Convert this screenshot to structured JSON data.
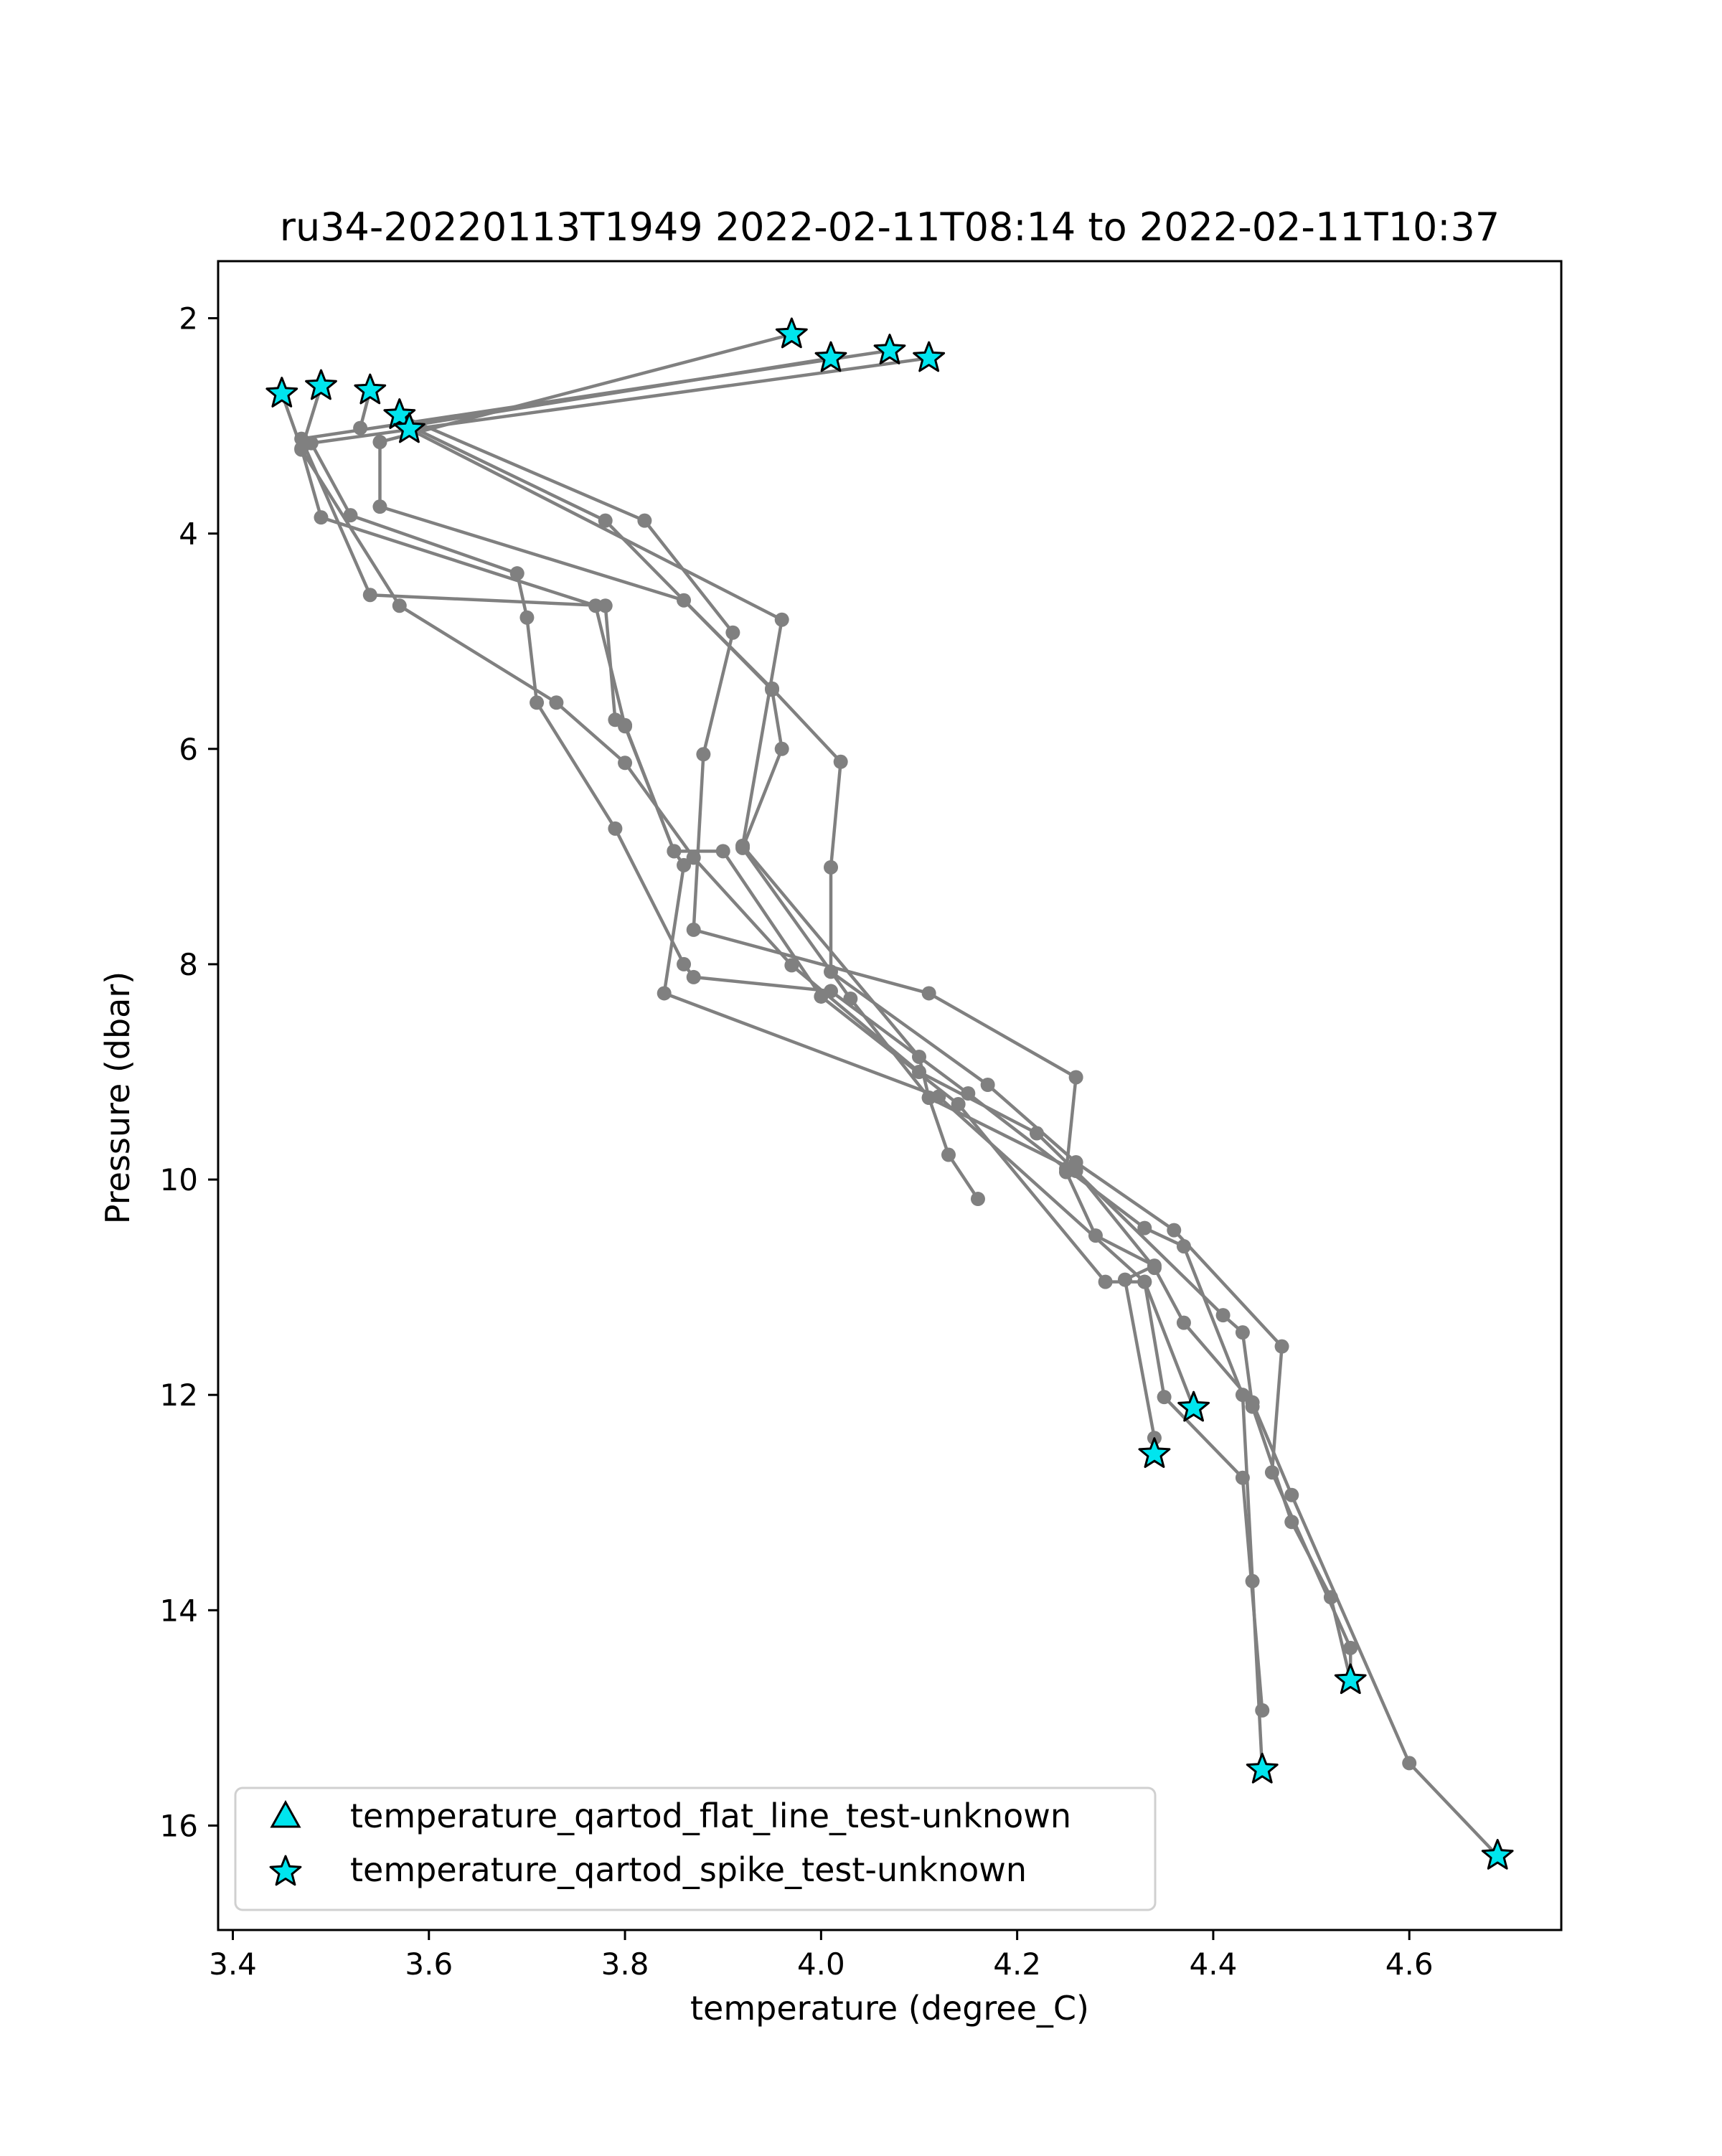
{
  "chart_data": {
    "type": "line",
    "title": "ru34-20220113T1949 2022-02-11T08:14 to 2022-02-11T10:37",
    "xlabel": "temperature (degree_C)",
    "ylabel": "Pressure (dbar)",
    "xlim": [
      3.385,
      4.755
    ],
    "ylim": [
      16.97,
      1.47
    ],
    "y_inverted": true,
    "grid": false,
    "xticks": [
      "3.4",
      "3.6",
      "3.8",
      "4.0",
      "4.2",
      "4.4",
      "4.6"
    ],
    "yticks": [
      "2",
      "4",
      "6",
      "8",
      "10",
      "12",
      "14",
      "16"
    ],
    "profile_color": "#808080",
    "flag_color": "#00e5ee",
    "legend": {
      "placement": "lower-left",
      "entries": [
        {
          "label": "temperature_qartod_flat_line_test-unknown",
          "marker": "triangle"
        },
        {
          "label": "temperature_qartod_spike_test-unknown",
          "marker": "star"
        }
      ]
    },
    "series": [
      {
        "points": [
          [
            4.11,
            2.37
          ],
          [
            3.48,
            3.16
          ],
          [
            3.52,
            3.83
          ],
          [
            3.69,
            4.37
          ],
          [
            3.7,
            4.78
          ],
          [
            3.71,
            5.57
          ],
          [
            3.79,
            6.74
          ],
          [
            3.86,
            8.0
          ],
          [
            3.87,
            8.12
          ],
          [
            4.01,
            8.25
          ],
          [
            4.15,
            9.2
          ],
          [
            4.25,
            9.9
          ],
          [
            4.33,
            10.45
          ],
          [
            4.37,
            10.62
          ],
          [
            4.43,
            12.0
          ],
          [
            4.44,
            13.73
          ],
          [
            4.45,
            15.48
          ]
        ]
      },
      {
        "points": [
          [
            4.07,
            2.3
          ],
          [
            3.47,
            3.12
          ],
          [
            3.54,
            4.57
          ],
          [
            3.78,
            4.67
          ],
          [
            3.79,
            5.73
          ],
          [
            3.8,
            5.78
          ],
          [
            3.85,
            6.95
          ],
          [
            3.86,
            7.08
          ],
          [
            3.84,
            8.27
          ],
          [
            4.12,
            9.23
          ],
          [
            4.33,
            10.95
          ],
          [
            4.38,
            12.12
          ]
        ]
      },
      {
        "points": [
          [
            3.97,
            2.15
          ],
          [
            3.55,
            3.15
          ],
          [
            3.55,
            3.75
          ],
          [
            3.86,
            4.62
          ],
          [
            3.95,
            5.44
          ],
          [
            4.02,
            6.12
          ],
          [
            4.01,
            7.1
          ],
          [
            4.01,
            8.07
          ],
          [
            4.17,
            9.12
          ],
          [
            4.26,
            9.84
          ],
          [
            4.36,
            10.47
          ],
          [
            4.47,
            11.55
          ],
          [
            4.46,
            12.72
          ],
          [
            4.54,
            14.35
          ],
          [
            4.54,
            14.65
          ]
        ]
      },
      {
        "points": [
          [
            4.01,
            2.37
          ],
          [
            3.58,
            3.0
          ],
          [
            3.78,
            3.88
          ],
          [
            3.95,
            5.45
          ],
          [
            3.96,
            6.0
          ],
          [
            3.92,
            6.92
          ],
          [
            4.03,
            8.32
          ],
          [
            4.11,
            9.24
          ],
          [
            4.26,
            9.92
          ],
          [
            4.34,
            10.82
          ],
          [
            4.37,
            11.33
          ],
          [
            4.44,
            12.07
          ],
          [
            4.48,
            12.93
          ],
          [
            4.6,
            15.42
          ],
          [
            4.69,
            16.28
          ]
        ]
      },
      {
        "points": [
          [
            3.58,
            3.03
          ],
          [
            3.96,
            4.8
          ],
          [
            3.92,
            6.9
          ],
          [
            4.1,
            8.86
          ],
          [
            4.11,
            9.24
          ],
          [
            4.13,
            9.77
          ],
          [
            4.16,
            10.18
          ]
        ]
      },
      {
        "points": [
          [
            3.57,
            2.9
          ],
          [
            3.82,
            3.88
          ],
          [
            3.91,
            4.92
          ],
          [
            3.88,
            6.05
          ],
          [
            3.87,
            7.68
          ],
          [
            4.11,
            8.27
          ],
          [
            4.26,
            9.05
          ],
          [
            4.25,
            9.93
          ],
          [
            4.28,
            10.52
          ],
          [
            4.34,
            10.8
          ],
          [
            4.31,
            10.93
          ],
          [
            4.34,
            12.4
          ],
          [
            4.34,
            12.55
          ]
        ]
      },
      {
        "points": [
          [
            3.45,
            2.7
          ],
          [
            3.47,
            3.21
          ],
          [
            3.49,
            3.85
          ],
          [
            3.77,
            4.67
          ],
          [
            3.8,
            5.79
          ],
          [
            3.85,
            6.95
          ],
          [
            3.9,
            6.95
          ],
          [
            4.0,
            8.3
          ],
          [
            4.14,
            9.3
          ],
          [
            4.29,
            10.95
          ],
          [
            4.33,
            10.95
          ],
          [
            4.35,
            12.02
          ],
          [
            4.43,
            12.77
          ],
          [
            4.45,
            14.93
          ]
        ]
      },
      {
        "points": [
          [
            3.49,
            2.63
          ],
          [
            3.47,
            3.22
          ],
          [
            3.57,
            4.67
          ],
          [
            3.73,
            5.57
          ],
          [
            3.8,
            6.13
          ],
          [
            3.87,
            7.01
          ],
          [
            3.97,
            8.01
          ],
          [
            4.1,
            9.0
          ],
          [
            4.22,
            9.57
          ],
          [
            4.41,
            11.26
          ],
          [
            4.43,
            11.42
          ],
          [
            4.44,
            12.11
          ],
          [
            4.48,
            13.18
          ],
          [
            4.52,
            13.88
          ],
          [
            4.54,
            14.65
          ]
        ]
      },
      {
        "points": [
          [
            3.54,
            2.67
          ],
          [
            3.53,
            3.02
          ]
        ]
      }
    ],
    "spike_flags": [
      [
        3.97,
        2.15
      ],
      [
        4.01,
        2.37
      ],
      [
        4.07,
        2.3
      ],
      [
        4.11,
        2.37
      ],
      [
        3.45,
        2.7
      ],
      [
        3.49,
        2.63
      ],
      [
        3.54,
        2.67
      ],
      [
        3.57,
        2.9
      ],
      [
        3.58,
        3.03
      ],
      [
        4.38,
        12.12
      ],
      [
        4.34,
        12.55
      ],
      [
        4.54,
        14.65
      ],
      [
        4.45,
        15.48
      ],
      [
        4.69,
        16.28
      ]
    ],
    "flat_line_flags": []
  }
}
